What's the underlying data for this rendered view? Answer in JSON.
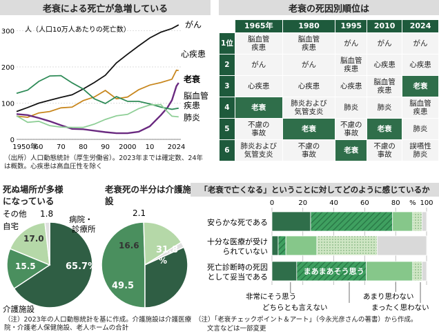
{
  "chart_data": [
    {
      "type": "line",
      "title": "老衰による死亡が急増している",
      "ylabel": "人（人口10万人あたりの死亡数）",
      "x_ticks": [
        "1950年",
        "60",
        "70",
        "80",
        "90",
        "2000",
        "10",
        "20",
        "24"
      ],
      "y_ticks": [
        "0",
        "100",
        "200",
        "300"
      ],
      "ylim": [
        0,
        320
      ],
      "xlim": [
        1950,
        2024
      ],
      "series": [
        {
          "name": "がん",
          "color": "#111111",
          "points": [
            [
              1950,
              77
            ],
            [
              1955,
              88
            ],
            [
              1960,
              100
            ],
            [
              1965,
              108
            ],
            [
              1970,
              116
            ],
            [
              1975,
              123
            ],
            [
              1980,
              139
            ],
            [
              1985,
              157
            ],
            [
              1990,
              177
            ],
            [
              1995,
              211
            ],
            [
              2000,
              235
            ],
            [
              2005,
              258
            ],
            [
              2010,
              280
            ],
            [
              2015,
              296
            ],
            [
              2020,
              306
            ],
            [
              2023,
              316
            ]
          ]
        },
        {
          "name": "心疾患",
          "color": "#c8871e",
          "points": [
            [
              1950,
              64
            ],
            [
              1955,
              61
            ],
            [
              1960,
              73
            ],
            [
              1965,
              77
            ],
            [
              1970,
              87
            ],
            [
              1975,
              89
            ],
            [
              1980,
              107
            ],
            [
              1985,
              117
            ],
            [
              1990,
              135
            ],
            [
              1995,
              112
            ],
            [
              2000,
              117
            ],
            [
              2005,
              137
            ],
            [
              2010,
              150
            ],
            [
              2015,
              157
            ],
            [
              2020,
              166
            ],
            [
              2022,
              191
            ],
            [
              2023,
              190
            ]
          ]
        },
        {
          "name": "老衰",
          "color": "#6a2a80",
          "points": [
            [
              1950,
              70
            ],
            [
              1955,
              67
            ],
            [
              1960,
              59
            ],
            [
              1965,
              50
            ],
            [
              1970,
              39
            ],
            [
              1975,
              29
            ],
            [
              1980,
              28
            ],
            [
              1985,
              24
            ],
            [
              1990,
              20
            ],
            [
              1995,
              17
            ],
            [
              2000,
              17
            ],
            [
              2005,
              21
            ],
            [
              2010,
              36
            ],
            [
              2015,
              67
            ],
            [
              2018,
              88
            ],
            [
              2020,
              108
            ],
            [
              2022,
              147
            ],
            [
              2023,
              156
            ]
          ]
        },
        {
          "name": "脳血管疾患",
          "color": "#2e8b57",
          "points": [
            [
              1950,
              127
            ],
            [
              1955,
              136
            ],
            [
              1960,
              160
            ],
            [
              1965,
              175
            ],
            [
              1970,
              176
            ],
            [
              1975,
              156
            ],
            [
              1980,
              139
            ],
            [
              1985,
              112
            ],
            [
              1990,
              99
            ],
            [
              1995,
              118
            ],
            [
              2000,
              105
            ],
            [
              2005,
              105
            ],
            [
              2010,
              98
            ],
            [
              2015,
              89
            ],
            [
              2020,
              83
            ],
            [
              2023,
              86
            ]
          ]
        },
        {
          "name": "肺炎",
          "color": "#8fcf97",
          "points": [
            [
              1950,
              65
            ],
            [
              1955,
              47
            ],
            [
              1960,
              50
            ],
            [
              1965,
              38
            ],
            [
              1970,
              34
            ],
            [
              1975,
              33
            ],
            [
              1980,
              33
            ],
            [
              1985,
              42
            ],
            [
              1990,
              55
            ],
            [
              1995,
              65
            ],
            [
              2000,
              69
            ],
            [
              2005,
              85
            ],
            [
              2010,
              95
            ],
            [
              2015,
              96
            ],
            [
              2018,
              76
            ],
            [
              2020,
              64
            ],
            [
              2023,
              62
            ]
          ]
        }
      ],
      "annotations": [
        "がん",
        "心疾患",
        "老衰",
        "脳血管疾患",
        "肺炎"
      ],
      "note": "（出所）人口動態統計（厚生労働省）。2023年までは確定数、24年は概数。心疾患は高血圧性を除く"
    },
    {
      "type": "table",
      "title": "老衰の死因別順位は",
      "columns": [
        "1965年",
        "1980",
        "1995",
        "2010",
        "2024"
      ],
      "rows": [
        {
          "rank": "1位",
          "cells": [
            "脳血管疾患",
            "脳血管疾患",
            "がん",
            "がん",
            "がん"
          ]
        },
        {
          "rank": "2",
          "cells": [
            "がん",
            "がん",
            "脳血管疾患",
            "心疾患",
            "心疾患"
          ]
        },
        {
          "rank": "3",
          "cells": [
            "心疾患",
            "心疾患",
            "心疾患",
            "脳血管疾患",
            "老衰"
          ]
        },
        {
          "rank": "4",
          "cells": [
            "老衰",
            "肺炎および気管支炎",
            "肺炎",
            "肺炎",
            "脳血管疾患"
          ]
        },
        {
          "rank": "5",
          "cells": [
            "不慮の事故",
            "老衰",
            "不慮の事故",
            "老衰",
            "肺炎"
          ]
        },
        {
          "rank": "6",
          "cells": [
            "肺炎および気管支炎",
            "不慮の事故",
            "老衰",
            "不慮の事故",
            "誤嚥性肺炎"
          ]
        }
      ]
    },
    {
      "type": "pie",
      "title": "死ぬ場所が多様になっている",
      "slices": [
        {
          "label": "病院・診療所",
          "value": 65.7,
          "color": "#2f5e44"
        },
        {
          "label": "介護施設",
          "value": 15.5,
          "color": "#4a8f5e"
        },
        {
          "label": "自宅",
          "value": 17.0,
          "color": "#b5d8a8"
        },
        {
          "label": "その他",
          "value": 1.8,
          "color": "#e0e0e0"
        }
      ],
      "value_labels": [
        "65.7%",
        "15.5",
        "17.0",
        "1.8"
      ]
    },
    {
      "type": "pie",
      "title": "老衰死の半分は介護施設",
      "slices": [
        {
          "label": "介護施設",
          "value": 49.5,
          "color": "#4a8f5e"
        },
        {
          "label": "自宅",
          "value": 16.6,
          "color": "#b5d8a8"
        },
        {
          "label": "その他",
          "value": 2.1,
          "color": "#e0e0e0"
        },
        {
          "label": "病院・診療所",
          "value": 31.8,
          "color": "#2f5e44"
        }
      ],
      "value_labels": [
        "49.5",
        "16.6",
        "2.1",
        "31.8%"
      ]
    },
    {
      "type": "bar",
      "title": "「老衰で亡くなる」ということに対してどのように感じているか",
      "x_ticks": [
        "0",
        "20",
        "40",
        "60",
        "80",
        "%",
        "100"
      ],
      "categories": [
        "安らかな死である",
        "十分な医療が受けられていない",
        "死亡診断時の死因として妥当である"
      ],
      "series": [
        {
          "name": "非常にそう思う",
          "color": "#2f6e4a",
          "values": [
            25,
            4,
            16
          ]
        },
        {
          "name": "まあまあそう思う",
          "color": "#3fa060",
          "values": [
            53,
            5,
            45
          ]
        },
        {
          "name": "どちらとも言えない",
          "color": "#86c78a",
          "values": [
            13,
            20,
            30
          ]
        },
        {
          "name": "あまり思わない",
          "color": "#bcdcb3",
          "values": [
            6,
            39,
            6
          ]
        },
        {
          "name": "まったく思わない",
          "color": "#d9d9d9",
          "values": [
            3,
            32,
            3
          ]
        }
      ],
      "inline_label": "まあまあそう思う",
      "legend_top": [
        "非常にそう思う",
        "あまり思わない"
      ],
      "legend_bottom": [
        "どちらとも言えない",
        "まったく思わない"
      ]
    }
  ],
  "notes": {
    "pie": "（注）2023年の人口動態統計を基に作成。介護施設は介護医療院・介護老人保健施設、老人ホームの合計",
    "bar_line1": "（注）「老衰チェックポイント＆アート」（今永光彦さんの著書）から作成。",
    "bar_line2": "文言などは一部変更"
  }
}
